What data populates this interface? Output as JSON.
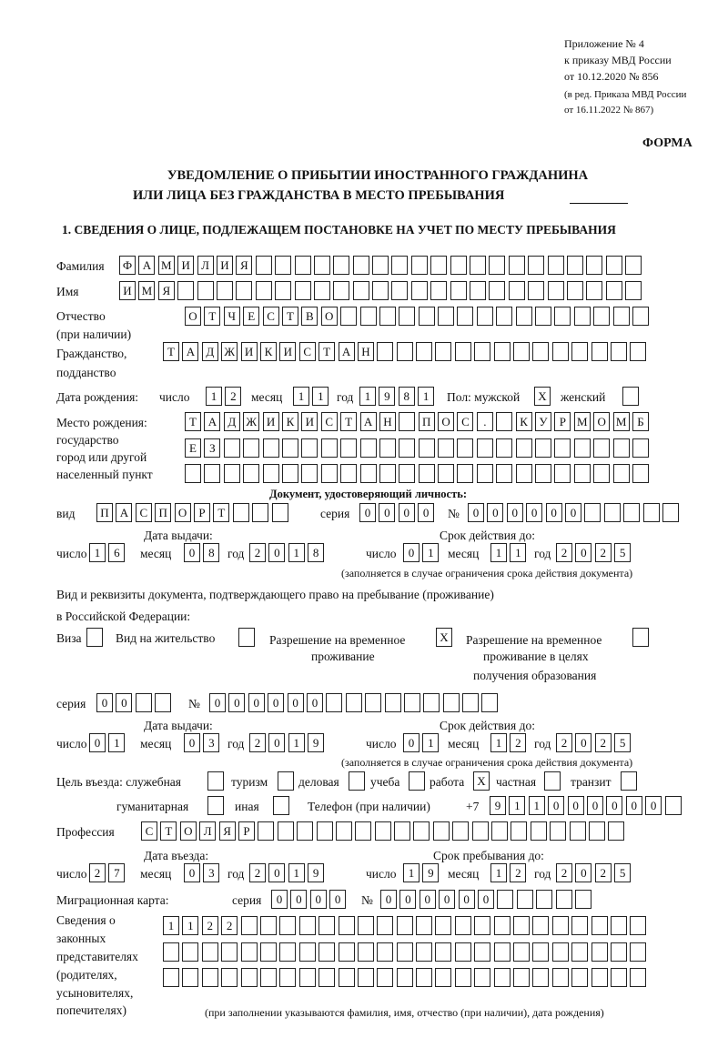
{
  "header": {
    "line1": "Приложение № 4",
    "line2": "к приказу МВД России",
    "line3": "от 10.12.2020 № 856",
    "line4": "(в ред. Приказа МВД России",
    "line5": "от 16.11.2022 № 867)",
    "forma": "ФОРМА",
    "title1": "УВЕДОМЛЕНИЕ О ПРИБЫТИИ ИНОСТРАННОГО ГРАЖДАНИНА",
    "title2": "ИЛИ ЛИЦА БЕЗ ГРАЖДАНСТВА В МЕСТО ПРЕБЫВАНИЯ"
  },
  "section1": {
    "title": "1. СВЕДЕНИЯ О ЛИЦЕ, ПОДЛЕЖАЩЕМ ПОСТАНОВКЕ НА УЧЕТ ПО МЕСТУ ПРЕБЫВАНИЯ"
  },
  "labels": {
    "surname": "Фамилия",
    "name": "Имя",
    "patronymic1": "Отчество",
    "patronymic2": "(при наличии)",
    "citizenship1": "Гражданство,",
    "citizenship2": "подданство",
    "dob": "Дата рождения:",
    "day": "число",
    "month": "месяц",
    "year": "год",
    "sex": "Пол: мужской",
    "female": "женский",
    "pob1": "Место рождения:",
    "pob2": "государство",
    "pob3": "город или другой",
    "pob4": "населенный пункт",
    "iddoc": "Документ, удостоверяющий личность:",
    "kind": "вид",
    "series": "серия",
    "number": "№",
    "issue_date": "Дата выдачи:",
    "valid_until": "Срок действия до:",
    "valid_note": "(заполняется в случае ограничения срока действия документа)",
    "permit1": "Вид и реквизиты документа, подтверждающего право на пребывание (проживание)",
    "permit2": "в Российской Федерации:",
    "visa": "Виза",
    "residence": "Вид на жительство",
    "trp1": "Разрешение на временное",
    "trp2": "проживание",
    "trpe1": "Разрешение на временное",
    "trpe2": "проживание в целях",
    "trpe3": "получения образования",
    "purpose": "Цель въезда: служебная",
    "tourism": "туризм",
    "business": "деловая",
    "study": "учеба",
    "work": "работа",
    "private": "частная",
    "transit": "транзит",
    "humanitarian": "гуманитарная",
    "other": "иная",
    "phone": "Телефон (при наличии)",
    "phone_prefix": "+7",
    "profession": "Профессия",
    "entry_date": "Дата въезда:",
    "stay_until": "Срок пребывания до:",
    "migcard": "Миграционная карта:",
    "legal1": "Сведения о",
    "legal2": "законных",
    "legal3": "представителях",
    "legal4": "(родителях,",
    "legal5": "усыновителях,",
    "legal6": "попечителях)",
    "legal_note": "(при заполнении указываются фамилия, имя, отчество (при наличии), дата рождения)"
  },
  "fields": {
    "surname": [
      "Ф",
      "А",
      "М",
      "И",
      "Л",
      "И",
      "Я",
      "",
      "",
      "",
      "",
      "",
      "",
      "",
      "",
      "",
      "",
      "",
      "",
      "",
      "",
      "",
      "",
      "",
      "",
      "",
      ""
    ],
    "name": [
      "И",
      "М",
      "Я",
      "",
      "",
      "",
      "",
      "",
      "",
      "",
      "",
      "",
      "",
      "",
      "",
      "",
      "",
      "",
      "",
      "",
      "",
      "",
      "",
      "",
      "",
      "",
      ""
    ],
    "patronymic": [
      "О",
      "Т",
      "Ч",
      "Е",
      "С",
      "Т",
      "В",
      "О",
      "",
      "",
      "",
      "",
      "",
      "",
      "",
      "",
      "",
      "",
      "",
      "",
      "",
      "",
      "",
      ""
    ],
    "citizenship": [
      "Т",
      "А",
      "Д",
      "Ж",
      "И",
      "К",
      "И",
      "С",
      "Т",
      "А",
      "Н",
      "",
      "",
      "",
      "",
      "",
      "",
      "",
      "",
      "",
      "",
      "",
      "",
      "",
      ""
    ],
    "dob_day": [
      "1",
      "2"
    ],
    "dob_month": [
      "1",
      "1"
    ],
    "dob_year": [
      "1",
      "9",
      "8",
      "1"
    ],
    "male": [
      "X"
    ],
    "female": [
      ""
    ],
    "pob1": [
      "Т",
      "А",
      "Д",
      "Ж",
      "И",
      "К",
      "И",
      "С",
      "Т",
      "А",
      "Н",
      "",
      "П",
      "О",
      "С",
      ".",
      "",
      "К",
      "У",
      "Р",
      "М",
      "О",
      "М",
      "Б"
    ],
    "pob2": [
      "Е",
      "З",
      "",
      "",
      "",
      "",
      "",
      "",
      "",
      "",
      "",
      "",
      "",
      "",
      "",
      "",
      "",
      "",
      "",
      "",
      "",
      "",
      "",
      ""
    ],
    "pob3": [
      "",
      "",
      "",
      "",
      "",
      "",
      "",
      "",
      "",
      "",
      "",
      "",
      "",
      "",
      "",
      "",
      "",
      "",
      "",
      "",
      "",
      "",
      "",
      ""
    ],
    "doc_kind": [
      "П",
      "А",
      "С",
      "П",
      "О",
      "Р",
      "Т",
      "",
      "",
      ""
    ],
    "doc_series": [
      "0",
      "0",
      "0",
      "0"
    ],
    "doc_number": [
      "0",
      "0",
      "0",
      "0",
      "0",
      "0",
      "",
      "",
      "",
      "",
      ""
    ],
    "doc_issue_day": [
      "1",
      "6"
    ],
    "doc_issue_month": [
      "0",
      "8"
    ],
    "doc_issue_year": [
      "2",
      "0",
      "1",
      "8"
    ],
    "doc_valid_day": [
      "0",
      "1"
    ],
    "doc_valid_month": [
      "1",
      "1"
    ],
    "doc_valid_year": [
      "2",
      "0",
      "2",
      "5"
    ],
    "visa": [
      ""
    ],
    "residence": [
      ""
    ],
    "trp": [
      "X"
    ],
    "trpe": [
      ""
    ],
    "permit_series": [
      "0",
      "0",
      "",
      ""
    ],
    "permit_number": [
      "0",
      "0",
      "0",
      "0",
      "0",
      "0",
      "",
      "",
      "",
      "",
      "",
      "",
      "",
      "",
      ""
    ],
    "permit_issue_day": [
      "0",
      "1"
    ],
    "permit_issue_month": [
      "0",
      "3"
    ],
    "permit_issue_year": [
      "2",
      "0",
      "1",
      "9"
    ],
    "permit_valid_day": [
      "0",
      "1"
    ],
    "permit_valid_month": [
      "1",
      "2"
    ],
    "permit_valid_year": [
      "2",
      "0",
      "2",
      "5"
    ],
    "p_service": [
      ""
    ],
    "p_tourism": [
      ""
    ],
    "p_business": [
      ""
    ],
    "p_study": [
      ""
    ],
    "p_work": [
      "X"
    ],
    "p_private": [
      ""
    ],
    "p_transit": [
      ""
    ],
    "p_humanitarian": [
      ""
    ],
    "p_other": [
      ""
    ],
    "phone": [
      "9",
      "1",
      "1",
      "0",
      "0",
      "0",
      "0",
      "0",
      "0",
      ""
    ],
    "profession": [
      "С",
      "Т",
      "О",
      "Л",
      "Я",
      "Р",
      "",
      "",
      "",
      "",
      "",
      "",
      "",
      "",
      "",
      "",
      "",
      "",
      "",
      "",
      "",
      "",
      "",
      "",
      ""
    ],
    "entry_day": [
      "2",
      "7"
    ],
    "entry_month": [
      "0",
      "3"
    ],
    "entry_year": [
      "2",
      "0",
      "1",
      "9"
    ],
    "stay_day": [
      "1",
      "9"
    ],
    "stay_month": [
      "1",
      "2"
    ],
    "stay_year": [
      "2",
      "0",
      "2",
      "5"
    ],
    "mig_series": [
      "0",
      "0",
      "0",
      "0"
    ],
    "mig_number": [
      "0",
      "0",
      "0",
      "0",
      "0",
      "0",
      "",
      "",
      "",
      "",
      ""
    ],
    "legal1": [
      "1",
      "1",
      "2",
      "2",
      "",
      "",
      "",
      "",
      "",
      "",
      "",
      "",
      "",
      "",
      "",
      "",
      "",
      "",
      "",
      "",
      "",
      "",
      "",
      "",
      ""
    ],
    "legal2": [
      "",
      "",
      "",
      "",
      "",
      "",
      "",
      "",
      "",
      "",
      "",
      "",
      "",
      "",
      "",
      "",
      "",
      "",
      "",
      "",
      "",
      "",
      "",
      "",
      ""
    ],
    "legal3": [
      "",
      "",
      "",
      "",
      "",
      "",
      "",
      "",
      "",
      "",
      "",
      "",
      "",
      "",
      "",
      "",
      "",
      "",
      "",
      "",
      "",
      "",
      "",
      "",
      ""
    ]
  }
}
